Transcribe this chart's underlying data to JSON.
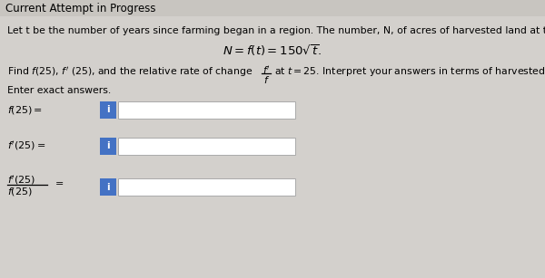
{
  "bg_color": "#d3d0cc",
  "title": "Current Attempt in Progress",
  "title_fontsize": 8.5,
  "title_color": "#000000",
  "body_text_line1": "Let t be the number of years since farming began in a region. The number, N, of acres of harvested land at time t is given by",
  "find_text_before": "Find f(25), f’ (25), and the relative rate of change",
  "find_text_after": "at t = 25. Interpret your answers in terms of harvested land.",
  "enter_text": "Enter exact answers.",
  "box_color": "#4472c4",
  "box_text": "i",
  "box_text_color": "#ffffff",
  "font_size_body": 7.8,
  "font_size_labels": 8.0,
  "font_size_formula": 9.5
}
